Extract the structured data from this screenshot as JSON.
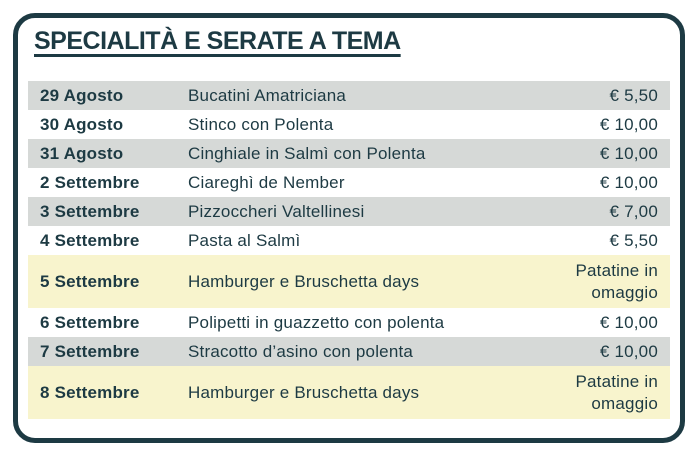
{
  "title": "SPECIALITÀ E SERATE A TEMA",
  "colors": {
    "accent": "#1d3a43",
    "row_gray": "#d6d9d7",
    "row_yellow": "#f8f4cd",
    "row_white": "#ffffff"
  },
  "menu": {
    "rows": [
      {
        "date": "29 Agosto",
        "dish": "Bucatini Amatriciana",
        "price": "€ 5,50",
        "highlight": "gray"
      },
      {
        "date": "30 Agosto",
        "dish": "Stinco con Polenta",
        "price": "€ 10,00",
        "highlight": "white"
      },
      {
        "date": "31 Agosto",
        "dish": "Cinghiale in Salmì con Polenta",
        "price": "€ 10,00",
        "highlight": "gray"
      },
      {
        "date": "2 Settembre",
        "dish": "Ciareghì de Nember",
        "price": "€ 10,00",
        "highlight": "white"
      },
      {
        "date": "3 Settembre",
        "dish": "Pizzoccheri Valtellinesi",
        "price": "€ 7,00",
        "highlight": "gray"
      },
      {
        "date": "4 Settembre",
        "dish": "Pasta al Salmì",
        "price": "€ 5,50",
        "highlight": "white"
      },
      {
        "date": "5 Settembre",
        "dish": "Hamburger e Bruschetta days",
        "price": "Patatine in omaggio",
        "highlight": "yellow"
      },
      {
        "date": "6 Settembre",
        "dish": "Polipetti in guazzetto con polenta",
        "price": "€ 10,00",
        "highlight": "white"
      },
      {
        "date": "7 Settembre",
        "dish": "Stracotto d’asino con polenta",
        "price": "€ 10,00",
        "highlight": "gray"
      },
      {
        "date": "8 Settembre",
        "dish": "Hamburger e Bruschetta days",
        "price": "Patatine in omaggio",
        "highlight": "yellow"
      }
    ]
  }
}
